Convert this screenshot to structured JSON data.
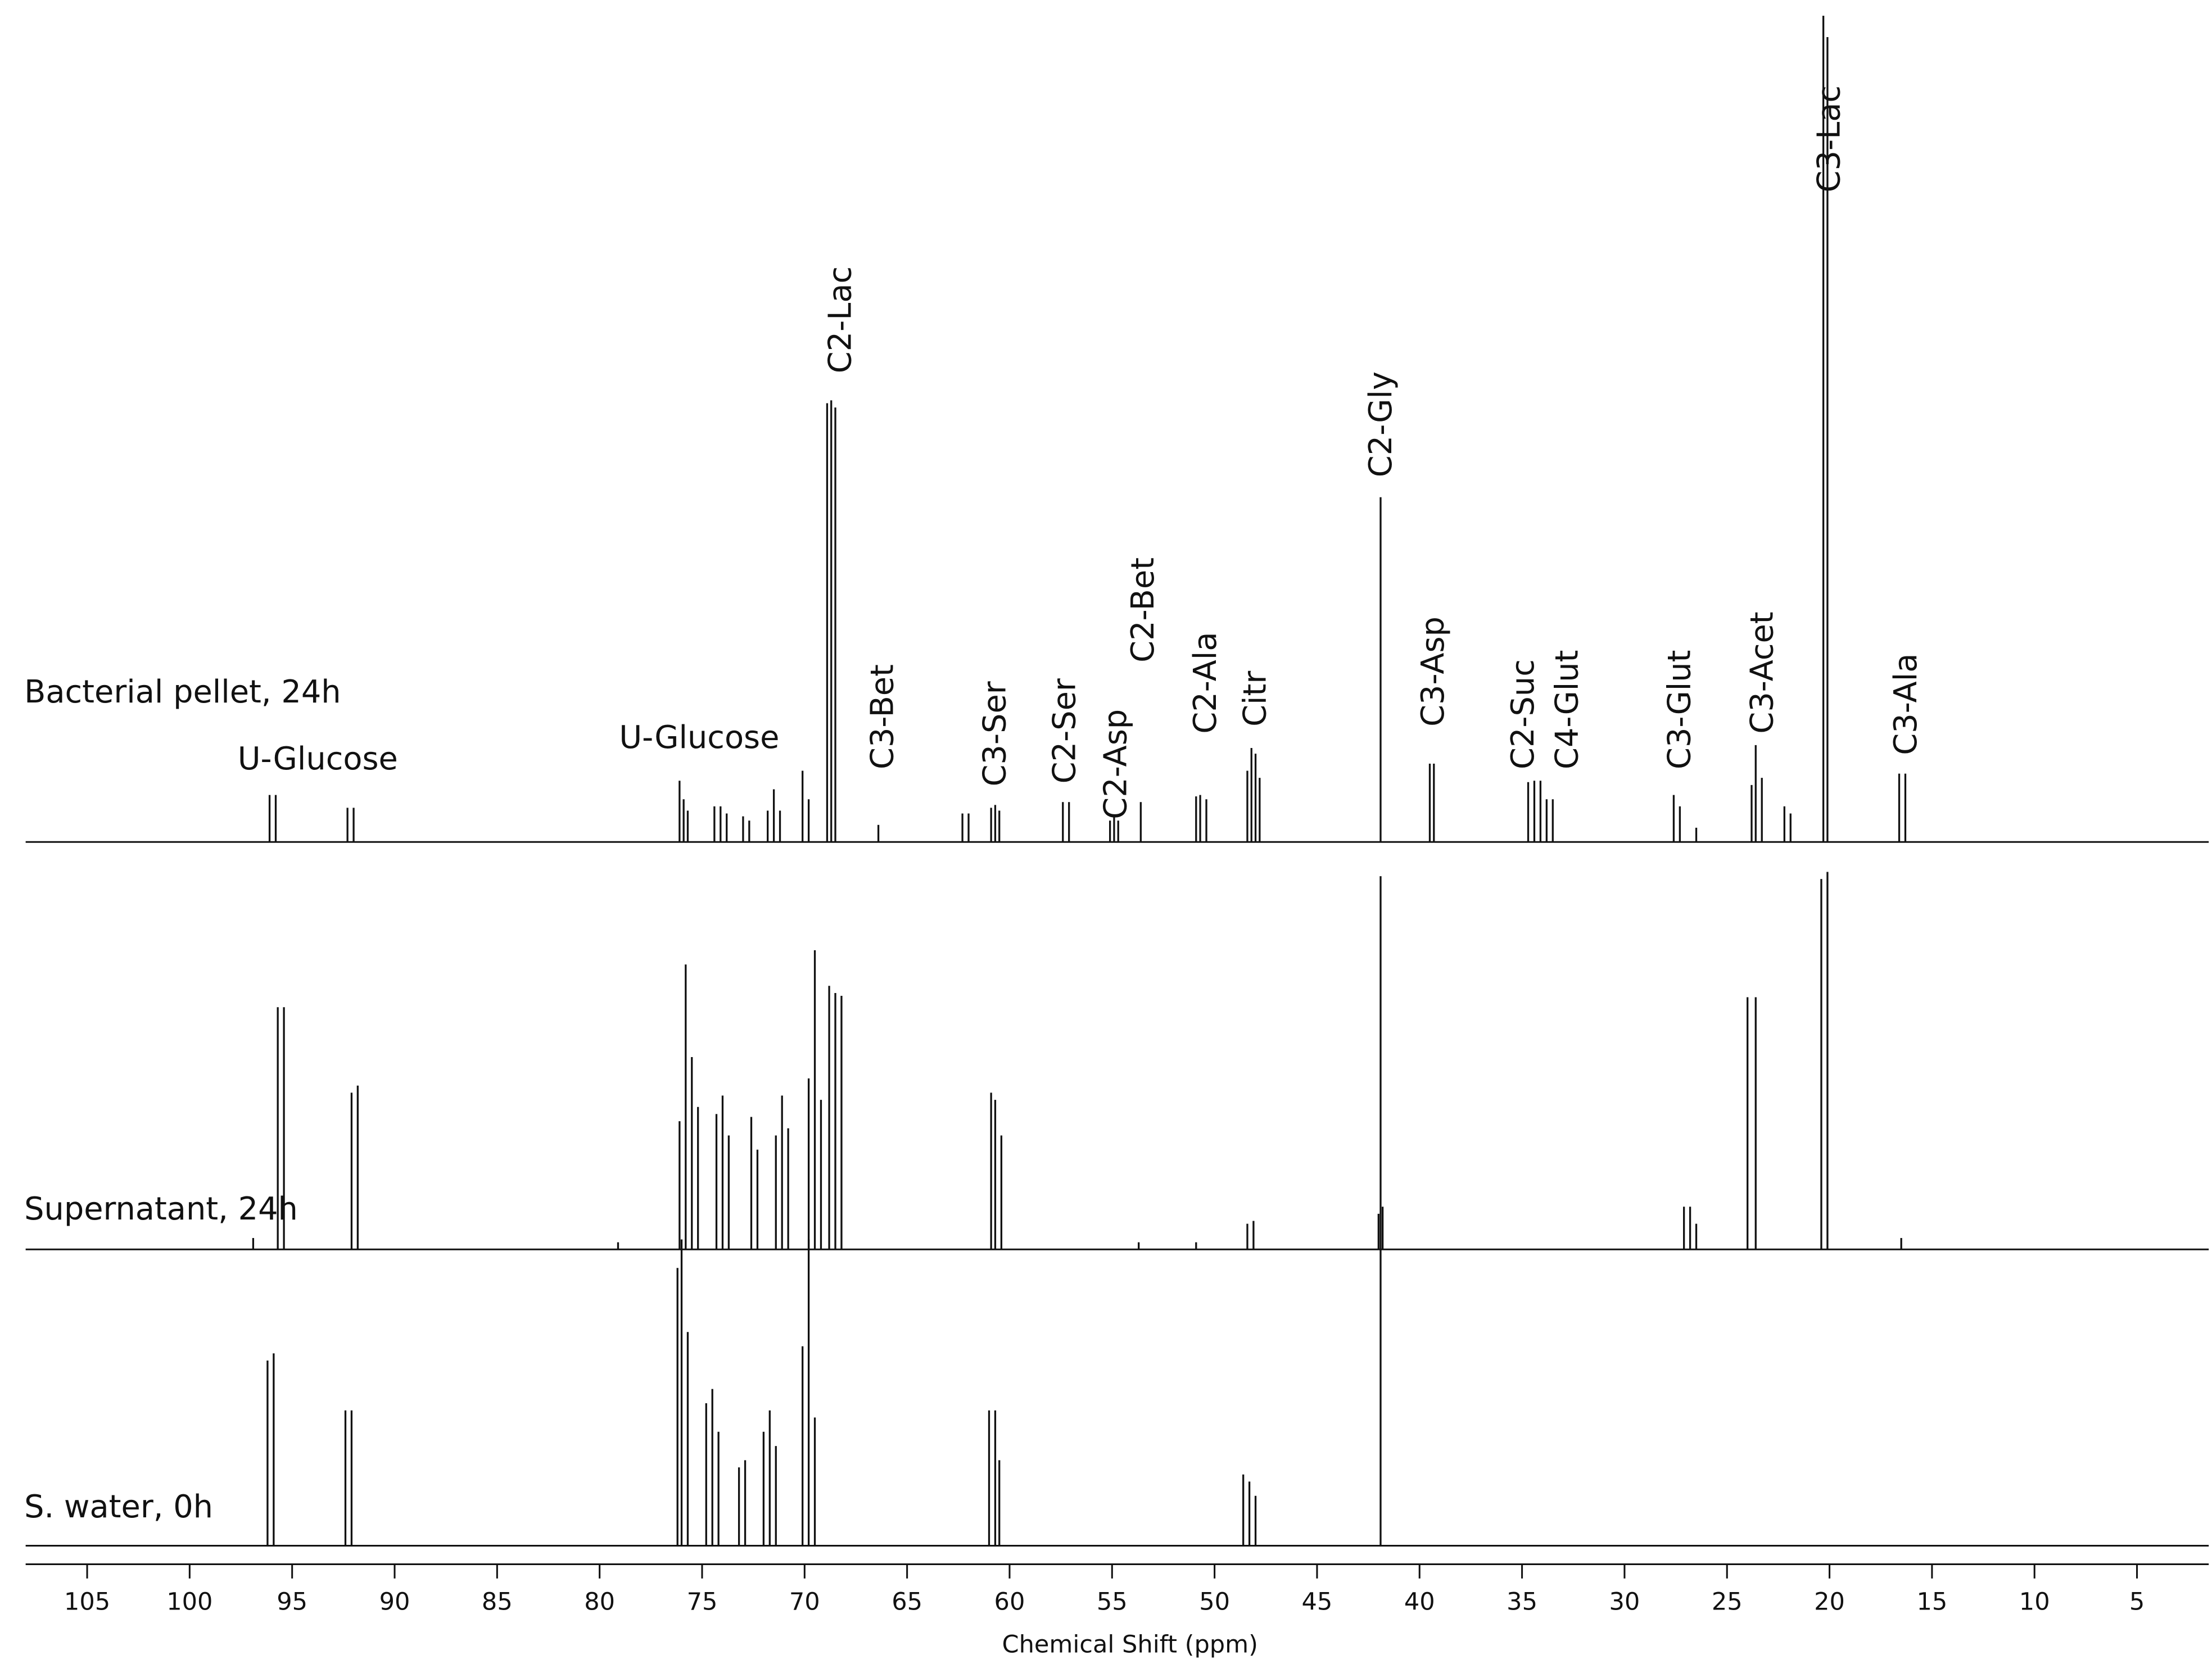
{
  "chart_data": {
    "type": "spectrum",
    "x_label": "Chemical Shift (ppm)",
    "xlim": [
      108,
      1.5
    ],
    "xticks": [
      105,
      100,
      95,
      90,
      85,
      80,
      75,
      70,
      65,
      60,
      55,
      50,
      45,
      40,
      35,
      30,
      25,
      20,
      15,
      10,
      5
    ],
    "series": [
      {
        "name": "Bacterial pellet, 24h",
        "color": "#111111",
        "x": [
          96.1,
          95.8,
          92.3,
          92.0,
          76.1,
          75.9,
          75.7,
          74.4,
          74.1,
          73.8,
          73.0,
          72.7,
          71.8,
          71.5,
          71.2,
          70.1,
          69.8,
          68.9,
          68.7,
          68.5,
          66.4,
          62.3,
          62.0,
          60.9,
          60.7,
          60.5,
          57.4,
          57.1,
          55.1,
          54.9,
          54.7,
          53.6,
          50.9,
          50.7,
          50.4,
          48.4,
          48.2,
          48.0,
          47.8,
          41.9,
          39.5,
          39.3,
          34.7,
          34.4,
          34.1,
          33.8,
          33.5,
          27.6,
          27.3,
          26.5,
          23.8,
          23.6,
          23.3,
          22.2,
          21.9,
          20.3,
          20.1,
          16.6,
          16.3
        ],
        "values": [
          33,
          33,
          24,
          24,
          43,
          30,
          22,
          25,
          25,
          20,
          18,
          15,
          22,
          37,
          22,
          50,
          30,
          308,
          310,
          305,
          12,
          20,
          20,
          24,
          26,
          22,
          28,
          28,
          15,
          18,
          15,
          28,
          32,
          33,
          30,
          50,
          66,
          62,
          45,
          242,
          55,
          55,
          42,
          43,
          43,
          30,
          30,
          33,
          25,
          10,
          40,
          68,
          45,
          25,
          20,
          580,
          565,
          48,
          48
        ]
      },
      {
        "name": "Supernatant, 24h",
        "color": "#111111",
        "x": [
          96.9,
          95.7,
          95.4,
          92.1,
          91.8,
          79.1,
          76.1,
          75.8,
          75.5,
          75.2,
          74.3,
          74.0,
          73.7,
          72.6,
          72.3,
          71.4,
          71.1,
          70.8,
          69.8,
          69.5,
          69.2,
          68.8,
          68.5,
          68.2,
          60.9,
          60.7,
          60.4,
          53.7,
          50.9,
          48.4,
          48.1,
          42.0,
          41.8,
          27.1,
          26.8,
          26.5,
          24.0,
          23.6,
          20.4,
          20.1,
          16.5
        ],
        "values": [
          8,
          170,
          170,
          110,
          115,
          5,
          90,
          200,
          135,
          100,
          95,
          108,
          80,
          93,
          70,
          80,
          108,
          85,
          120,
          210,
          105,
          185,
          180,
          178,
          110,
          105,
          80,
          5,
          5,
          18,
          20,
          25,
          30,
          30,
          30,
          18,
          177,
          177,
          260,
          265,
          8
        ]
      },
      {
        "name": "S. water, 0h",
        "color": "#111111",
        "x": [
          96.2,
          95.9,
          92.4,
          92.1,
          76.2,
          76.0,
          75.7,
          74.8,
          74.5,
          74.2,
          73.2,
          72.9,
          72.0,
          71.7,
          71.4,
          70.1,
          69.8,
          69.5,
          61.0,
          60.7,
          60.5,
          48.6,
          48.3,
          48.0,
          41.9
        ],
        "values": [
          130,
          135,
          95,
          95,
          195,
          215,
          150,
          100,
          110,
          80,
          55,
          60,
          80,
          95,
          70,
          140,
          215,
          90,
          95,
          95,
          60,
          50,
          45,
          35,
          470
        ]
      }
    ],
    "annotations": [
      {
        "text": "U-Glucose",
        "x": 93.75
      },
      {
        "text": "U-Glucose",
        "x": 75.14
      },
      {
        "text": "C2-Lac",
        "x": 68.3
      },
      {
        "text": "C3-Bet",
        "x": 66.25
      },
      {
        "text": "C3-Ser",
        "x": 60.76
      },
      {
        "text": "C2-Ser",
        "x": 57.36
      },
      {
        "text": "C2-Asp",
        "x": 54.86
      },
      {
        "text": "C2-Bet",
        "x": 53.54
      },
      {
        "text": "C2-Ala",
        "x": 50.49
      },
      {
        "text": "Citr",
        "x": 48.06
      },
      {
        "text": "C2-Gly",
        "x": 41.94
      },
      {
        "text": "C3-Asp",
        "x": 39.38
      },
      {
        "text": "C2-Suc",
        "x": 35.0
      },
      {
        "text": "C4-Glut",
        "x": 32.85
      },
      {
        "text": "C3-Glut",
        "x": 27.36
      },
      {
        "text": "C3-Acet",
        "x": 23.33
      },
      {
        "text": "C3-Lac",
        "x": 20.07
      },
      {
        "text": "C3-Ala",
        "x": 16.32
      }
    ]
  }
}
